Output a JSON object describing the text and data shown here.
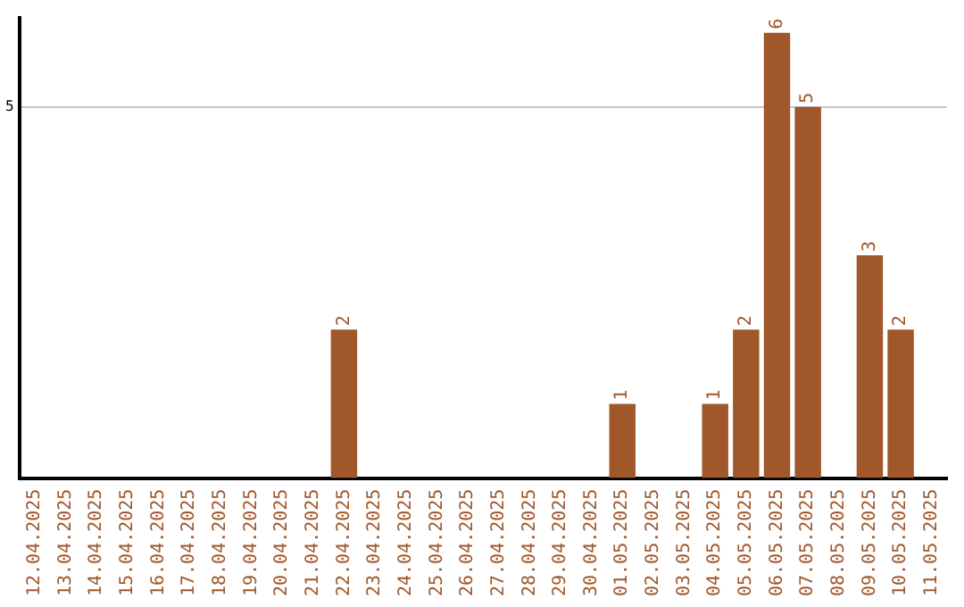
{
  "chart_data": {
    "type": "bar",
    "categories": [
      "12.04.2025",
      "13.04.2025",
      "14.04.2025",
      "15.04.2025",
      "16.04.2025",
      "17.04.2025",
      "18.04.2025",
      "19.04.2025",
      "20.04.2025",
      "21.04.2025",
      "22.04.2025",
      "23.04.2025",
      "24.04.2025",
      "25.04.2025",
      "26.04.2025",
      "27.04.2025",
      "28.04.2025",
      "29.04.2025",
      "30.04.2025",
      "01.05.2025",
      "02.05.2025",
      "03.05.2025",
      "04.05.2025",
      "05.05.2025",
      "06.05.2025",
      "07.05.2025",
      "08.05.2025",
      "09.05.2025",
      "10.05.2025",
      "11.05.2025"
    ],
    "values": [
      0,
      0,
      0,
      0,
      0,
      0,
      0,
      0,
      0,
      0,
      2,
      0,
      0,
      0,
      0,
      0,
      0,
      0,
      0,
      1,
      0,
      0,
      1,
      2,
      6,
      5,
      0,
      3,
      2,
      0
    ],
    "value_labels": [
      null,
      null,
      null,
      null,
      null,
      null,
      null,
      null,
      null,
      null,
      "2",
      null,
      null,
      null,
      null,
      null,
      null,
      null,
      null,
      "1",
      null,
      null,
      "1",
      "2",
      "6",
      "5",
      null,
      "3",
      "2",
      null
    ],
    "color": "#a0572a",
    "ylim": [
      0,
      6.2
    ],
    "yticks": [
      5
    ],
    "grid": "y",
    "legend": false
  }
}
